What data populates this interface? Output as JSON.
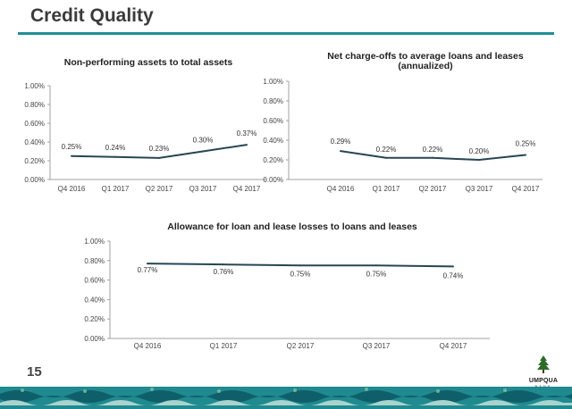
{
  "header": {
    "title": "Credit Quality"
  },
  "footer": {
    "page_number": "15",
    "logo_text": "UMPQUA",
    "logo_subtext": "BANK"
  },
  "colors": {
    "accent": "#1f8f96",
    "line": "#264653",
    "axis": "#a0a0a0"
  },
  "chart_data": [
    {
      "type": "line",
      "title": "Non-performing assets to total assets",
      "categories": [
        "Q4 2016",
        "Q1 2017",
        "Q2 2017",
        "Q3 2017",
        "Q4 2017"
      ],
      "values": [
        0.25,
        0.24,
        0.23,
        0.3,
        0.37
      ],
      "data_labels": [
        "0.25%",
        "0.24%",
        "0.23%",
        "0.30%",
        "0.37%"
      ],
      "y_ticks": [
        "0.00%",
        "0.20%",
        "0.40%",
        "0.60%",
        "0.80%",
        "1.00%"
      ],
      "ylim": [
        0,
        1.0
      ],
      "grid": false
    },
    {
      "type": "line",
      "title": "Net charge-offs to average loans and leases (annualized)",
      "title_lines": [
        "Net charge-offs to average loans and leases",
        "(annualized)"
      ],
      "categories": [
        "Q4 2016",
        "Q1 2017",
        "Q2 2017",
        "Q3 2017",
        "Q4 2017"
      ],
      "values": [
        0.29,
        0.22,
        0.22,
        0.2,
        0.25
      ],
      "data_labels": [
        "0.29%",
        "0.22%",
        "0.22%",
        "0.20%",
        "0.25%"
      ],
      "y_ticks": [
        "0.00%",
        "0.20%",
        "0.40%",
        "0.60%",
        "0.80%",
        "1.00%"
      ],
      "ylim": [
        0,
        1.0
      ],
      "grid": false
    },
    {
      "type": "line",
      "title": "Allowance for loan and lease losses to loans and leases",
      "categories": [
        "Q4 2016",
        "Q1 2017",
        "Q2 2017",
        "Q3 2017",
        "Q4 2017"
      ],
      "values": [
        0.77,
        0.76,
        0.75,
        0.75,
        0.74
      ],
      "data_labels": [
        "0.77%",
        "0.76%",
        "0.75%",
        "0.75%",
        "0.74%"
      ],
      "y_ticks": [
        "0.00%",
        "0.20%",
        "0.40%",
        "0.60%",
        "0.80%",
        "1.00%"
      ],
      "ylim": [
        0,
        1.0
      ],
      "grid": false
    }
  ]
}
